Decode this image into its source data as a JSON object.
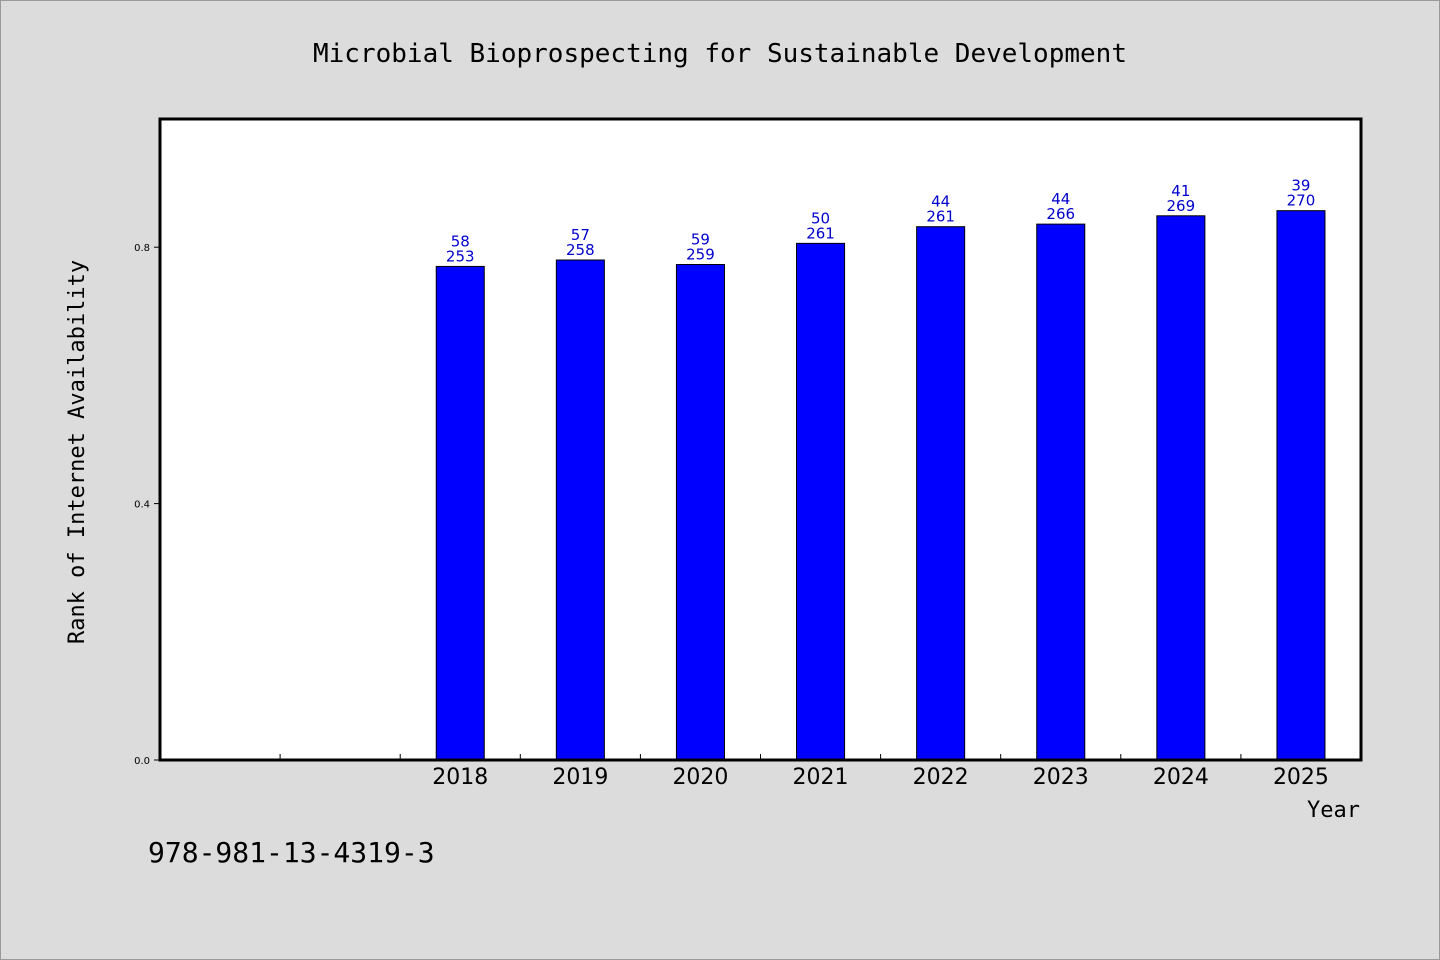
{
  "chart_data": {
    "type": "bar",
    "title": "Microbial Bioprospecting for Sustainable Development",
    "xlabel": "Year",
    "ylabel": "Rank of Internet Availability",
    "ylim": [
      0,
      1.0
    ],
    "yticks": [
      0.0,
      0.4,
      0.8
    ],
    "ytick_labels": [
      "0.0",
      "0.4",
      "0.8"
    ],
    "grid": false,
    "colors": {
      "bar": "#0000ff",
      "bar_label": "#0000cc",
      "background": "#dcdcdc",
      "plot": "#ffffff"
    },
    "categories": [
      "2018",
      "2019",
      "2020",
      "2021",
      "2022",
      "2023",
      "2024",
      "2025"
    ],
    "values": [
      0.77,
      0.78,
      0.773,
      0.806,
      0.832,
      0.836,
      0.849,
      0.857
    ],
    "bar_labels_top": [
      "58",
      "57",
      "59",
      "50",
      "44",
      "44",
      "41",
      "39"
    ],
    "bar_labels_bottom": [
      "253",
      "258",
      "259",
      "261",
      "261",
      "266",
      "269",
      "270"
    ]
  },
  "footer": {
    "isbn": "978-981-13-4319-3"
  }
}
